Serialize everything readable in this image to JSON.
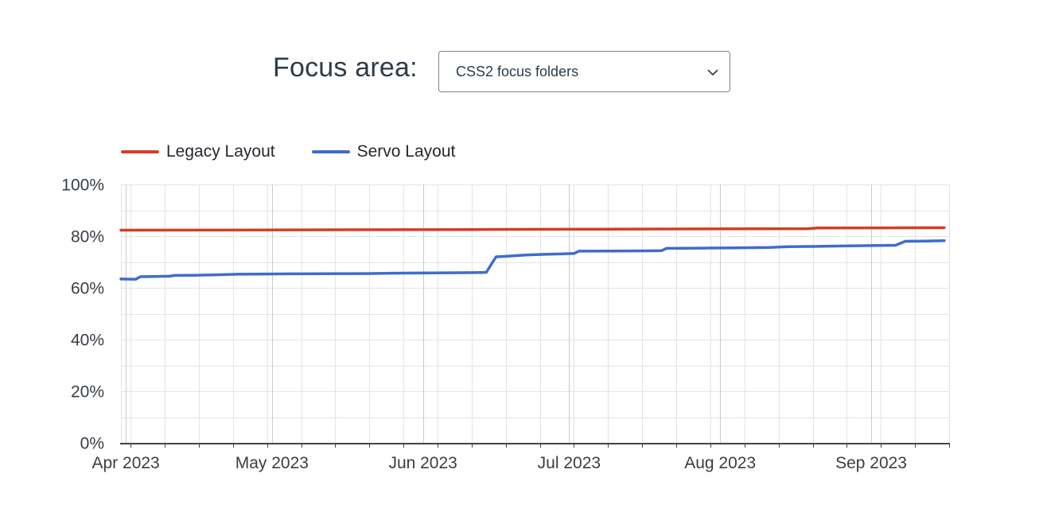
{
  "header": {
    "label": "Focus area:",
    "select_value": "CSS2 focus folders"
  },
  "legend": [
    {
      "label": "Legacy Layout",
      "color": "#d43d26"
    },
    {
      "label": "Servo Layout",
      "color": "#3e6dcb"
    }
  ],
  "chart_data": {
    "type": "line",
    "title": "",
    "xlabel": "",
    "ylabel": "",
    "ylim": [
      0,
      100
    ],
    "y_minor_step": 10,
    "grid": true,
    "legend_position": "top-left",
    "x_domain": [
      "2023-03-31",
      "2023-09-17"
    ],
    "week_grid_start": "2023-04-02",
    "y_major_ticks": [
      {
        "value": 0,
        "label": "0%"
      },
      {
        "value": 20,
        "label": "20%"
      },
      {
        "value": 40,
        "label": "40%"
      },
      {
        "value": 60,
        "label": "60%"
      },
      {
        "value": 80,
        "label": "80%"
      },
      {
        "value": 100,
        "label": "100%"
      }
    ],
    "x_ticks": [
      {
        "date": "2023-04-01",
        "label": "Apr 2023"
      },
      {
        "date": "2023-05-01",
        "label": "May 2023"
      },
      {
        "date": "2023-06-01",
        "label": "Jun 2023"
      },
      {
        "date": "2023-07-01",
        "label": "Jul 2023"
      },
      {
        "date": "2023-08-01",
        "label": "Aug 2023"
      },
      {
        "date": "2023-09-01",
        "label": "Sep 2023"
      }
    ],
    "colors": {
      "grid": "#e4e4e4",
      "grid_month": "#cbcbcb",
      "axis": "#3f4449",
      "text": "#383e45"
    },
    "series": [
      {
        "name": "Legacy Layout",
        "color": "#d43d26",
        "points": [
          [
            "2023-03-31",
            82.3
          ],
          [
            "2023-04-20",
            82.35
          ],
          [
            "2023-05-15",
            82.45
          ],
          [
            "2023-06-10",
            82.55
          ],
          [
            "2023-06-25",
            82.65
          ],
          [
            "2023-07-15",
            82.75
          ],
          [
            "2023-08-10",
            82.85
          ],
          [
            "2023-08-19",
            82.9
          ],
          [
            "2023-08-21",
            83.15
          ],
          [
            "2023-09-05",
            83.2
          ],
          [
            "2023-09-16",
            83.25
          ]
        ]
      },
      {
        "name": "Servo Layout",
        "color": "#3e6dcb",
        "points": [
          [
            "2023-03-31",
            63.4
          ],
          [
            "2023-04-03",
            63.3
          ],
          [
            "2023-04-04",
            64.3
          ],
          [
            "2023-04-07",
            64.4
          ],
          [
            "2023-04-10",
            64.5
          ],
          [
            "2023-04-11",
            64.8
          ],
          [
            "2023-04-15",
            64.85
          ],
          [
            "2023-04-19",
            65.0
          ],
          [
            "2023-04-24",
            65.25
          ],
          [
            "2023-04-28",
            65.3
          ],
          [
            "2023-05-05",
            65.4
          ],
          [
            "2023-05-12",
            65.45
          ],
          [
            "2023-05-20",
            65.5
          ],
          [
            "2023-05-26",
            65.65
          ],
          [
            "2023-06-03",
            65.75
          ],
          [
            "2023-06-09",
            65.85
          ],
          [
            "2023-06-13",
            65.95
          ],
          [
            "2023-06-14",
            66.0
          ],
          [
            "2023-06-16",
            72.0
          ],
          [
            "2023-06-19",
            72.3
          ],
          [
            "2023-06-22",
            72.7
          ],
          [
            "2023-06-26",
            72.95
          ],
          [
            "2023-06-30",
            73.15
          ],
          [
            "2023-07-02",
            73.3
          ],
          [
            "2023-07-03",
            74.2
          ],
          [
            "2023-07-10",
            74.25
          ],
          [
            "2023-07-17",
            74.3
          ],
          [
            "2023-07-20",
            74.4
          ],
          [
            "2023-07-21",
            75.25
          ],
          [
            "2023-07-28",
            75.35
          ],
          [
            "2023-08-04",
            75.45
          ],
          [
            "2023-08-11",
            75.6
          ],
          [
            "2023-08-15",
            75.9
          ],
          [
            "2023-08-20",
            76.0
          ],
          [
            "2023-08-26",
            76.2
          ],
          [
            "2023-09-01",
            76.35
          ],
          [
            "2023-09-06",
            76.45
          ],
          [
            "2023-09-08",
            78.0
          ],
          [
            "2023-09-12",
            78.1
          ],
          [
            "2023-09-16",
            78.25
          ]
        ]
      }
    ]
  }
}
